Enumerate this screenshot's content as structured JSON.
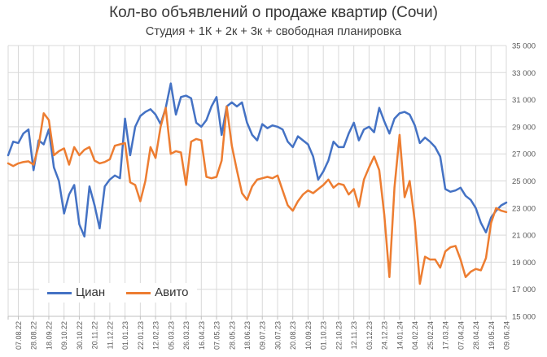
{
  "title": "Кол-во объявлений о продаже квартир (Сочи)",
  "subtitle": "Студия + 1К + 2к + 3к + свободная планировка",
  "colors": {
    "cian": "#4472C4",
    "avito": "#ED7D31",
    "gridline": "#D9D9D9",
    "axis_line": "#BFBFBF",
    "axis_text": "#595959",
    "title_text": "#383838"
  },
  "chart_data": {
    "type": "line",
    "title": "Кол-во объявлений о продаже квартир (Сочи)",
    "subtitle": "Студия + 1К + 2к + 3к + свободная планировка",
    "grid": true,
    "legend_position": "inside-bottom-left",
    "ylim": [
      15000,
      35000
    ],
    "y_label_step": 2000,
    "y_tick_labels": [
      "35 000",
      "33 000",
      "31 000",
      "29 000",
      "27 000",
      "25 000",
      "23 000",
      "21 000",
      "19 000",
      "17 000",
      "15 000"
    ],
    "x_tick_labels": [
      "07.08.22",
      "28.08.22",
      "18.09.22",
      "09.10.22",
      "30.10.22",
      "20.11.22",
      "11.12.22",
      "01.01.23",
      "22.01.23",
      "12.02.23",
      "05.03.23",
      "26.03.23",
      "16.04.23",
      "07.05.23",
      "28.05.23",
      "18.06.23",
      "09.07.23",
      "30.07.23",
      "20.08.23",
      "10.09.23",
      "01.10.23",
      "22.10.23",
      "12.11.23",
      "03.12.23",
      "24.12.23",
      "14.01.24",
      "04.02.24",
      "25.02.24",
      "17.03.24",
      "07.04.24",
      "28.04.24",
      "19.05.24",
      "09.06.24"
    ],
    "points_per_labeled_tick": 3,
    "lead_points_before_first_tick": 2,
    "series": [
      {
        "name": "Циан",
        "color": "#4472C4",
        "values": [
          26900,
          27900,
          27800,
          28500,
          28800,
          25800,
          28000,
          27700,
          28800,
          26000,
          25000,
          22600,
          24000,
          24700,
          21800,
          20900,
          24600,
          23200,
          21500,
          24600,
          25100,
          25400,
          25200,
          29600,
          26900,
          29000,
          29800,
          30100,
          30300,
          29900,
          29200,
          30400,
          32200,
          29900,
          31200,
          31300,
          31100,
          29300,
          29000,
          29500,
          30500,
          31200,
          28400,
          30500,
          30800,
          30500,
          30800,
          29300,
          28400,
          28000,
          29200,
          28900,
          29100,
          29000,
          28800,
          27900,
          27500,
          28300,
          28000,
          27700,
          26800,
          25100,
          25700,
          26500,
          27900,
          27500,
          27500,
          28500,
          29300,
          28000,
          28800,
          29000,
          28600,
          30400,
          29400,
          28500,
          29600,
          30000,
          30100,
          29900,
          29100,
          27800,
          28200,
          27900,
          27500,
          26800,
          24400,
          24200,
          24300,
          24500,
          23900,
          23600,
          23000,
          21900,
          21200,
          22300,
          22800,
          23200,
          23400
        ]
      },
      {
        "name": "Авито",
        "color": "#ED7D31",
        "values": [
          26300,
          26100,
          26300,
          26400,
          26450,
          26200,
          27600,
          30000,
          29500,
          26900,
          27200,
          27400,
          26200,
          27500,
          26900,
          27300,
          27500,
          26500,
          26300,
          26400,
          26600,
          27600,
          27700,
          27800,
          24900,
          24700,
          23500,
          25000,
          27500,
          26700,
          29000,
          30400,
          27000,
          27200,
          27100,
          24700,
          27900,
          28100,
          28000,
          25300,
          25200,
          25300,
          26500,
          30500,
          27600,
          25800,
          24100,
          23600,
          24600,
          25100,
          25200,
          25300,
          25200,
          25400,
          24300,
          23200,
          22800,
          23500,
          24000,
          24300,
          24100,
          24400,
          24700,
          25100,
          24500,
          24800,
          24700,
          24000,
          24400,
          23100,
          25100,
          26000,
          26800,
          25800,
          22500,
          17900,
          24500,
          28400,
          23800,
          25000,
          22000,
          17400,
          19400,
          19200,
          19200,
          18600,
          19800,
          20100,
          20200,
          19200,
          17900,
          18300,
          18500,
          18400,
          19300,
          21900,
          23000,
          22800,
          22700
        ]
      }
    ]
  },
  "legend": {
    "cian_label": "Циан",
    "avito_label": "Авито"
  }
}
